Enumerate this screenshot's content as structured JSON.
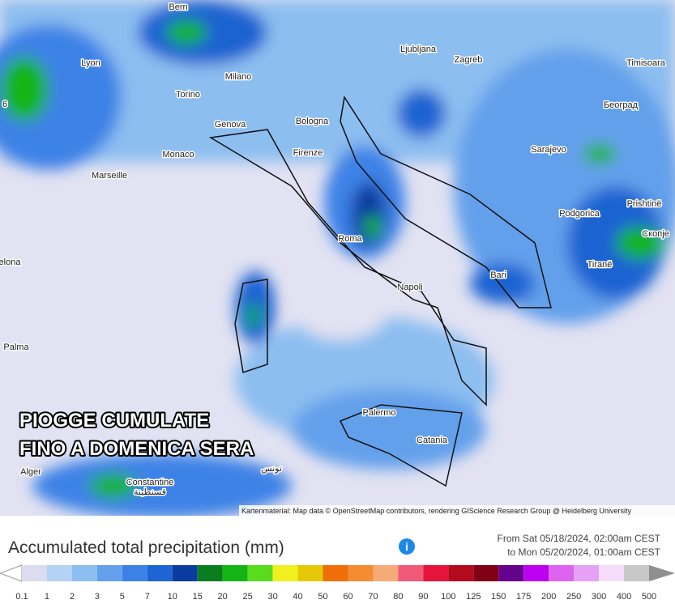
{
  "map": {
    "labels": [
      "Bern",
      "Lyon",
      "Milano",
      "Torino",
      "Genova",
      "Bologna",
      "Monaco",
      "Marseille",
      "Firenze",
      "Roma",
      "Napoli",
      "Bari",
      "Palermo",
      "Catania",
      "Palma",
      "elona",
      "Alger",
      "Constantine",
      "قسنطينة",
      "تونس",
      "Ljubljana",
      "Zagreb",
      "Београд",
      "Sarajevo",
      "Podgorica",
      "Prishtinë",
      "Скопје",
      "Tiranë",
      "Timisoara",
      "6"
    ],
    "overlay": [
      "PIOGGE CUMULATE",
      "FINO A DOMENICA SERA"
    ],
    "attribution": "Kartenmaterial: Map data © OpenStreetMap contributors, rendering GIScience Research Group @ Heidelberg University"
  },
  "legend": {
    "title": "Accumulated total precipitation (mm)",
    "info": "i",
    "from": "From Sat 05/18/2024, 02:00am CEST",
    "to": "to Mon 05/20/2024, 01:00am CEST",
    "ticks": [
      0.1,
      1,
      2,
      3,
      5,
      7,
      10,
      15,
      20,
      25,
      30,
      40,
      50,
      60,
      70,
      80,
      90,
      100,
      125,
      150,
      175,
      200,
      250,
      300,
      400,
      500
    ],
    "colors": [
      "#dcdcf0",
      "#b4d2f5",
      "#8cbef0",
      "#64a0eb",
      "#3c82e6",
      "#1e64d2",
      "#0a3ca0",
      "#0a7d1e",
      "#14b414",
      "#5adc1e",
      "#f0f01e",
      "#e6c80a",
      "#f06e0a",
      "#f58c32",
      "#f5aa78",
      "#f05a78",
      "#e6143c",
      "#b40a1e",
      "#820014",
      "#64008c",
      "#be00f0",
      "#dc64f0",
      "#e6a0f5",
      "#f5dcfa",
      "#c8c8c8"
    ],
    "under_color": "#ffffff",
    "over_color": "#909090"
  }
}
